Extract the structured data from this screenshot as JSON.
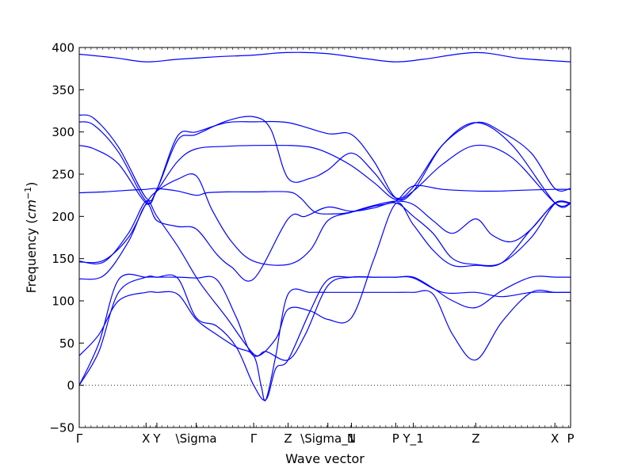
{
  "chart_data": {
    "type": "line",
    "title": "",
    "xlabel": "Wave vector",
    "ylabel": "Frequency",
    "ylabel_unit_base": "cm",
    "ylabel_unit_exp": "−1",
    "ylim": [
      -50,
      400
    ],
    "yticks": [
      -50,
      0,
      50,
      100,
      150,
      200,
      250,
      300,
      350,
      400
    ],
    "xlim": [
      0,
      100
    ],
    "high_symmetry_points": [
      {
        "label": "Γ",
        "x": 0
      },
      {
        "label": "X",
        "x": 13.6
      },
      {
        "label": "Y",
        "x": 15.8
      },
      {
        "label": "\\Sigma",
        "x": 23.8
      },
      {
        "label": "Γ",
        "x": 35.5
      },
      {
        "label": "Z",
        "x": 42.5
      },
      {
        "label": "\\Sigma_1",
        "x": 50.6
      },
      {
        "label": "N",
        "x": 55.4
      },
      {
        "label": "P",
        "x": 64.4
      },
      {
        "label": "Y_1",
        "x": 68.0
      },
      {
        "label": "Z",
        "x": 80.7
      },
      {
        "label": "X",
        "x": 96.8
      },
      {
        "label": "P",
        "x": 100
      }
    ],
    "zero_line": true,
    "line_color": "#0000ff",
    "series": [
      {
        "x": [
          0,
          7,
          13.6,
          20,
          28,
          35.5,
          42,
          50,
          58,
          64.4,
          70,
          80.7,
          90,
          100
        ],
        "y": [
          392,
          388,
          383,
          386,
          389,
          391,
          394,
          393,
          387,
          383,
          386,
          394,
          387,
          383
        ]
      },
      {
        "x": [
          0,
          3,
          8,
          13.6,
          15.8,
          20,
          23.8,
          30,
          35.5,
          39,
          42.5,
          47,
          50.6,
          55.4,
          60,
          64.4,
          68,
          74,
          80.7,
          86,
          92,
          96.8,
          100
        ],
        "y": [
          320,
          316,
          282,
          222,
          232,
          290,
          297,
          313,
          318,
          303,
          245,
          245,
          255,
          275,
          252,
          222,
          235,
          285,
          311,
          300,
          275,
          233,
          233
        ]
      },
      {
        "x": [
          0,
          3,
          8,
          13.6,
          15.8,
          20,
          23.8,
          30,
          35.5,
          42.5,
          50.6,
          55.4,
          60,
          64.4,
          68,
          74,
          80.7,
          88,
          96.8,
          100
        ],
        "y": [
          312,
          308,
          276,
          218,
          232,
          295,
          300,
          311,
          312,
          311,
          298,
          297,
          265,
          222,
          230,
          285,
          311,
          285,
          216,
          215
        ]
      },
      {
        "x": [
          0,
          3,
          8,
          13.6,
          15.8,
          20,
          23.8,
          30,
          35.5,
          42.5,
          47,
          50.6,
          55.4,
          60,
          64.4,
          68,
          74,
          80.7,
          88,
          96.8,
          100
        ],
        "y": [
          284,
          280,
          262,
          216,
          230,
          265,
          280,
          283,
          284,
          284,
          282,
          275,
          260,
          240,
          220,
          230,
          262,
          284,
          270,
          216,
          216
        ]
      },
      {
        "x": [
          0,
          5,
          10,
          13.6,
          15.8,
          20,
          23.8,
          26,
          30,
          35.5,
          42.5,
          45,
          48,
          52,
          55.4,
          60,
          64.4,
          68,
          74,
          80.7,
          86,
          90,
          96.8,
          100
        ],
        "y": [
          228,
          229,
          231,
          232,
          233,
          230,
          225,
          228,
          229,
          229,
          229,
          222,
          205,
          203,
          205,
          212,
          218,
          236,
          232,
          230,
          230,
          231,
          232,
          232
        ]
      },
      {
        "x": [
          0,
          5,
          10,
          13.6,
          15.8,
          20,
          23.8,
          27,
          31,
          35.5,
          42.5,
          47,
          50.6,
          55.4,
          60,
          64.4,
          68,
          72,
          76,
          80.7,
          84,
          88,
          92,
          96.8,
          100
        ],
        "y": [
          146,
          148,
          175,
          215,
          230,
          244,
          248,
          208,
          170,
          147,
          143,
          160,
          195,
          205,
          213,
          218,
          214,
          195,
          180,
          197,
          178,
          170,
          185,
          216,
          216
        ]
      },
      {
        "x": [
          0,
          5,
          10,
          13.6,
          15.8,
          20,
          23.8,
          28,
          31,
          35.5,
          42.5,
          46,
          50.6,
          55.4,
          60,
          64.4,
          68,
          72,
          76,
          80.7,
          86,
          92,
          96.8,
          100
        ],
        "y": [
          126,
          130,
          170,
          214,
          195,
          188,
          185,
          155,
          140,
          126,
          197,
          200,
          211,
          206,
          210,
          216,
          200,
          180,
          150,
          143,
          145,
          175,
          215,
          215
        ]
      },
      {
        "x": [
          0,
          4,
          8,
          13.6,
          15.8,
          20,
          23.8,
          28,
          32,
          35.5,
          40,
          42.5,
          47,
          50.6,
          55.4,
          60,
          64.4,
          68,
          72,
          76,
          80.7,
          86,
          92,
          96.8,
          100
        ],
        "y": [
          0,
          40,
          110,
          128,
          128,
          128,
          127,
          125,
          80,
          35,
          55,
          90,
          88,
          78,
          80,
          150,
          215,
          190,
          160,
          142,
          142,
          145,
          185,
          215,
          215
        ]
      },
      {
        "x": [
          0,
          4,
          8,
          13.6,
          15.8,
          20,
          23.8,
          28,
          32,
          35.5,
          38,
          40,
          42.5,
          47,
          50.6,
          55.4,
          60,
          64.4,
          68,
          72,
          76,
          80.7,
          86,
          92,
          96.8,
          100
        ],
        "y": [
          0,
          50,
          125,
          128,
          128,
          127,
          80,
          70,
          45,
          0,
          -17,
          20,
          30,
          88,
          125,
          128,
          128,
          128,
          128,
          115,
          100,
          92,
          112,
          128,
          128,
          128
        ]
      },
      {
        "x": [
          0,
          4,
          8,
          13.6,
          15.8,
          20,
          23.8,
          28,
          32,
          35.5,
          37,
          38,
          40,
          42.5,
          47,
          50.6,
          55.4,
          60,
          64.4,
          68,
          72,
          76,
          80.7,
          86,
          92,
          96.8,
          100
        ],
        "y": [
          35,
          60,
          100,
          110,
          110,
          108,
          78,
          60,
          45,
          35,
          0,
          -17,
          35,
          108,
          110,
          110,
          110,
          110,
          110,
          110,
          108,
          60,
          30,
          75,
          110,
          110,
          110
        ]
      },
      {
        "x": [
          0,
          5,
          10,
          13.6,
          15.8,
          20,
          23.8,
          26,
          30,
          35.5,
          38,
          42.5,
          46,
          50.6,
          55.4,
          60,
          64.4,
          68,
          74,
          80.7,
          86,
          92,
          96.8,
          100
        ],
        "y": [
          147,
          146,
          180,
          218,
          200,
          165,
          128,
          110,
          80,
          37,
          40,
          30,
          60,
          118,
          128,
          128,
          128,
          127,
          110,
          110,
          105,
          110,
          110,
          110
        ]
      }
    ]
  }
}
